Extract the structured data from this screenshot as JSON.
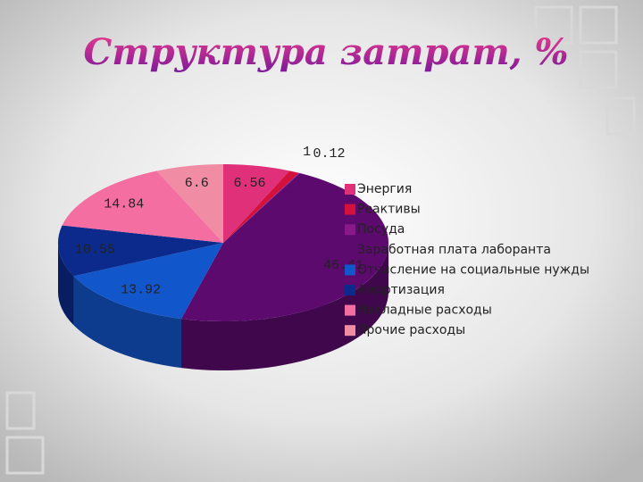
{
  "chart_data": {
    "type": "pie",
    "title": "Структура затрат, %",
    "categories": [
      "Энергия",
      "Реактивы",
      "Посуда",
      "Заработная плата лаборанта",
      "Отчисление на социальные нужды",
      "Амортизация",
      "Накладные расходы",
      "Прочие расходы"
    ],
    "values": [
      6.56,
      1,
      0.12,
      46.41,
      13.92,
      10.55,
      14.84,
      6.6
    ],
    "colors": [
      "#e0307a",
      "#d4103c",
      "#8a1a8a",
      "#5c0a6e",
      "#1256cc",
      "#0c2a8c",
      "#f46ea2",
      "#f08ca4"
    ],
    "legend": "right"
  }
}
